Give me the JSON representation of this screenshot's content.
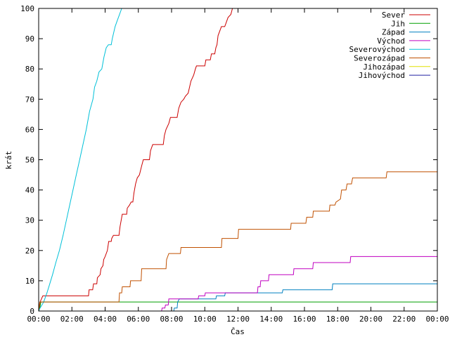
{
  "chart_data": {
    "type": "line",
    "xlabel": "Čas",
    "ylabel": "krát",
    "xlim": [
      0,
      1440
    ],
    "ylim": [
      0,
      100
    ],
    "grid": false,
    "legend_position": "top-right",
    "x_ticks": [
      "00:00",
      "02:00",
      "04:00",
      "06:00",
      "08:00",
      "10:00",
      "12:00",
      "14:00",
      "16:00",
      "18:00",
      "20:00",
      "22:00",
      "00:00"
    ],
    "y_ticks": [
      0,
      10,
      20,
      30,
      40,
      50,
      60,
      70,
      80,
      90,
      100
    ],
    "series": [
      {
        "name": "Sever",
        "color": "#cc0000",
        "points": [
          [
            0,
            0
          ],
          [
            3,
            1
          ],
          [
            5,
            3
          ],
          [
            15,
            5
          ],
          [
            180,
            5
          ],
          [
            182,
            7
          ],
          [
            195,
            7
          ],
          [
            198,
            9
          ],
          [
            210,
            9
          ],
          [
            212,
            11
          ],
          [
            222,
            12
          ],
          [
            225,
            14
          ],
          [
            232,
            15
          ],
          [
            235,
            17
          ],
          [
            240,
            18
          ],
          [
            248,
            20
          ],
          [
            253,
            23
          ],
          [
            262,
            23
          ],
          [
            264,
            24
          ],
          [
            270,
            25
          ],
          [
            290,
            25
          ],
          [
            294,
            28
          ],
          [
            302,
            32
          ],
          [
            318,
            32
          ],
          [
            320,
            34
          ],
          [
            328,
            35
          ],
          [
            334,
            36
          ],
          [
            340,
            36
          ],
          [
            344,
            39
          ],
          [
            350,
            42
          ],
          [
            356,
            44
          ],
          [
            364,
            45
          ],
          [
            372,
            48
          ],
          [
            378,
            50
          ],
          [
            400,
            50
          ],
          [
            404,
            53
          ],
          [
            412,
            55
          ],
          [
            450,
            55
          ],
          [
            454,
            58
          ],
          [
            460,
            60
          ],
          [
            470,
            62
          ],
          [
            476,
            64
          ],
          [
            500,
            64
          ],
          [
            506,
            67
          ],
          [
            514,
            69
          ],
          [
            524,
            70
          ],
          [
            530,
            71
          ],
          [
            540,
            72
          ],
          [
            550,
            76
          ],
          [
            560,
            78
          ],
          [
            566,
            80
          ],
          [
            570,
            81
          ],
          [
            600,
            81
          ],
          [
            604,
            83
          ],
          [
            620,
            83
          ],
          [
            624,
            85
          ],
          [
            636,
            85
          ],
          [
            640,
            87
          ],
          [
            644,
            88
          ],
          [
            648,
            91
          ],
          [
            660,
            94
          ],
          [
            672,
            94
          ],
          [
            676,
            95
          ],
          [
            684,
            97
          ],
          [
            694,
            98
          ],
          [
            700,
            100
          ]
        ]
      },
      {
        "name": "Jih",
        "color": "#00a000",
        "points": [
          [
            0,
            0
          ],
          [
            4,
            1
          ],
          [
            8,
            3
          ],
          [
            1440,
            3
          ]
        ]
      },
      {
        "name": "Západ",
        "color": "#0080c0",
        "points": [
          [
            488,
            0
          ],
          [
            490,
            1
          ],
          [
            500,
            1
          ],
          [
            502,
            3
          ],
          [
            508,
            4
          ],
          [
            600,
            4
          ],
          [
            602,
            4
          ],
          [
            640,
            4
          ],
          [
            642,
            5
          ],
          [
            672,
            5
          ],
          [
            674,
            6
          ],
          [
            880,
            6
          ],
          [
            882,
            7
          ],
          [
            1060,
            7
          ],
          [
            1062,
            9
          ],
          [
            1440,
            9
          ]
        ]
      },
      {
        "name": "Východ",
        "color": "#c000c0",
        "points": [
          [
            444,
            0
          ],
          [
            446,
            1
          ],
          [
            456,
            1
          ],
          [
            458,
            2
          ],
          [
            468,
            2
          ],
          [
            470,
            4
          ],
          [
            576,
            4
          ],
          [
            578,
            5
          ],
          [
            600,
            5
          ],
          [
            602,
            6
          ],
          [
            790,
            6
          ],
          [
            792,
            8
          ],
          [
            800,
            8
          ],
          [
            802,
            10
          ],
          [
            830,
            10
          ],
          [
            832,
            12
          ],
          [
            920,
            12
          ],
          [
            922,
            14
          ],
          [
            990,
            14
          ],
          [
            992,
            16
          ],
          [
            1125,
            16
          ],
          [
            1127,
            18
          ],
          [
            1440,
            18
          ]
        ]
      },
      {
        "name": "Severovýchod",
        "color": "#00c0d8",
        "points": [
          [
            0,
            0
          ],
          [
            5,
            1
          ],
          [
            18,
            3
          ],
          [
            30,
            6
          ],
          [
            40,
            9
          ],
          [
            50,
            12
          ],
          [
            62,
            16
          ],
          [
            75,
            20
          ],
          [
            88,
            25
          ],
          [
            100,
            30
          ],
          [
            112,
            35
          ],
          [
            124,
            40
          ],
          [
            136,
            45
          ],
          [
            148,
            50
          ],
          [
            160,
            55
          ],
          [
            172,
            60
          ],
          [
            184,
            66
          ],
          [
            190,
            68
          ],
          [
            196,
            70
          ],
          [
            202,
            74
          ],
          [
            210,
            76
          ],
          [
            218,
            79
          ],
          [
            228,
            80
          ],
          [
            236,
            84
          ],
          [
            244,
            87
          ],
          [
            252,
            88
          ],
          [
            262,
            88
          ],
          [
            266,
            90
          ],
          [
            276,
            94
          ],
          [
            284,
            96
          ],
          [
            292,
            98
          ],
          [
            300,
            100
          ]
        ]
      },
      {
        "name": "Severozápad",
        "color": "#c05000",
        "points": [
          [
            0,
            0
          ],
          [
            4,
            3
          ],
          [
            290,
            3
          ],
          [
            292,
            6
          ],
          [
            300,
            6
          ],
          [
            302,
            8
          ],
          [
            330,
            8
          ],
          [
            332,
            10
          ],
          [
            370,
            10
          ],
          [
            372,
            14
          ],
          [
            460,
            14
          ],
          [
            462,
            17
          ],
          [
            470,
            19
          ],
          [
            512,
            19
          ],
          [
            514,
            21
          ],
          [
            660,
            21
          ],
          [
            662,
            24
          ],
          [
            720,
            24
          ],
          [
            722,
            27
          ],
          [
            910,
            27
          ],
          [
            912,
            29
          ],
          [
            965,
            29
          ],
          [
            968,
            31
          ],
          [
            990,
            31
          ],
          [
            992,
            33
          ],
          [
            1050,
            33
          ],
          [
            1052,
            35
          ],
          [
            1070,
            35
          ],
          [
            1074,
            36
          ],
          [
            1090,
            37
          ],
          [
            1094,
            40
          ],
          [
            1110,
            40
          ],
          [
            1114,
            42
          ],
          [
            1130,
            42
          ],
          [
            1134,
            44
          ],
          [
            1255,
            44
          ],
          [
            1258,
            46
          ],
          [
            1440,
            46
          ]
        ]
      },
      {
        "name": "Jihozápad",
        "color": "#e0e000",
        "points": []
      },
      {
        "name": "Jihovýchod",
        "color": "#2020a0",
        "points": []
      }
    ]
  }
}
